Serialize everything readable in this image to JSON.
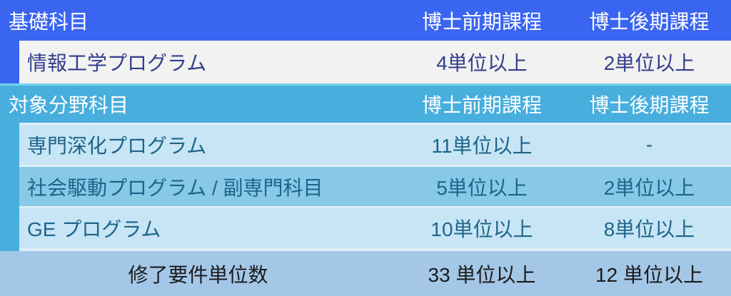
{
  "colors": {
    "primary_blue": "#3a65f1",
    "secondary_blue": "#47aedd",
    "row_offwhite": "#f2f2f0",
    "row_light_blue": "#c7e5f4",
    "row_medium_blue": "#87c9e7",
    "footer_blue": "#a4c7e8",
    "text_navy": "#333d8e",
    "text_teal": "#1e648c",
    "text_dark": "#1b1b1b"
  },
  "table": {
    "sections": [
      {
        "header": {
          "title": "基礎科目",
          "col_masters": "博士前期課程",
          "col_doctoral": "博士後期課程"
        },
        "rows": [
          {
            "label": "情報工学プログラム",
            "masters": "4単位以上",
            "doctoral": "2単位以上"
          }
        ]
      },
      {
        "header": {
          "title": "対象分野科目",
          "col_masters": "博士前期課程",
          "col_doctoral": "博士後期課程"
        },
        "rows": [
          {
            "label": "専門深化プログラム",
            "masters": "11単位以上",
            "doctoral": "-"
          },
          {
            "label": "社会駆動プログラム / 副専門科目",
            "masters": "5単位以上",
            "doctoral": "2単位以上"
          },
          {
            "label": "GE プログラム",
            "masters": "10単位以上",
            "doctoral": "8単位以上"
          }
        ]
      }
    ],
    "footer": {
      "label": "修了要件単位数",
      "masters": "33 単位以上",
      "doctoral": "12 単位以上"
    }
  }
}
